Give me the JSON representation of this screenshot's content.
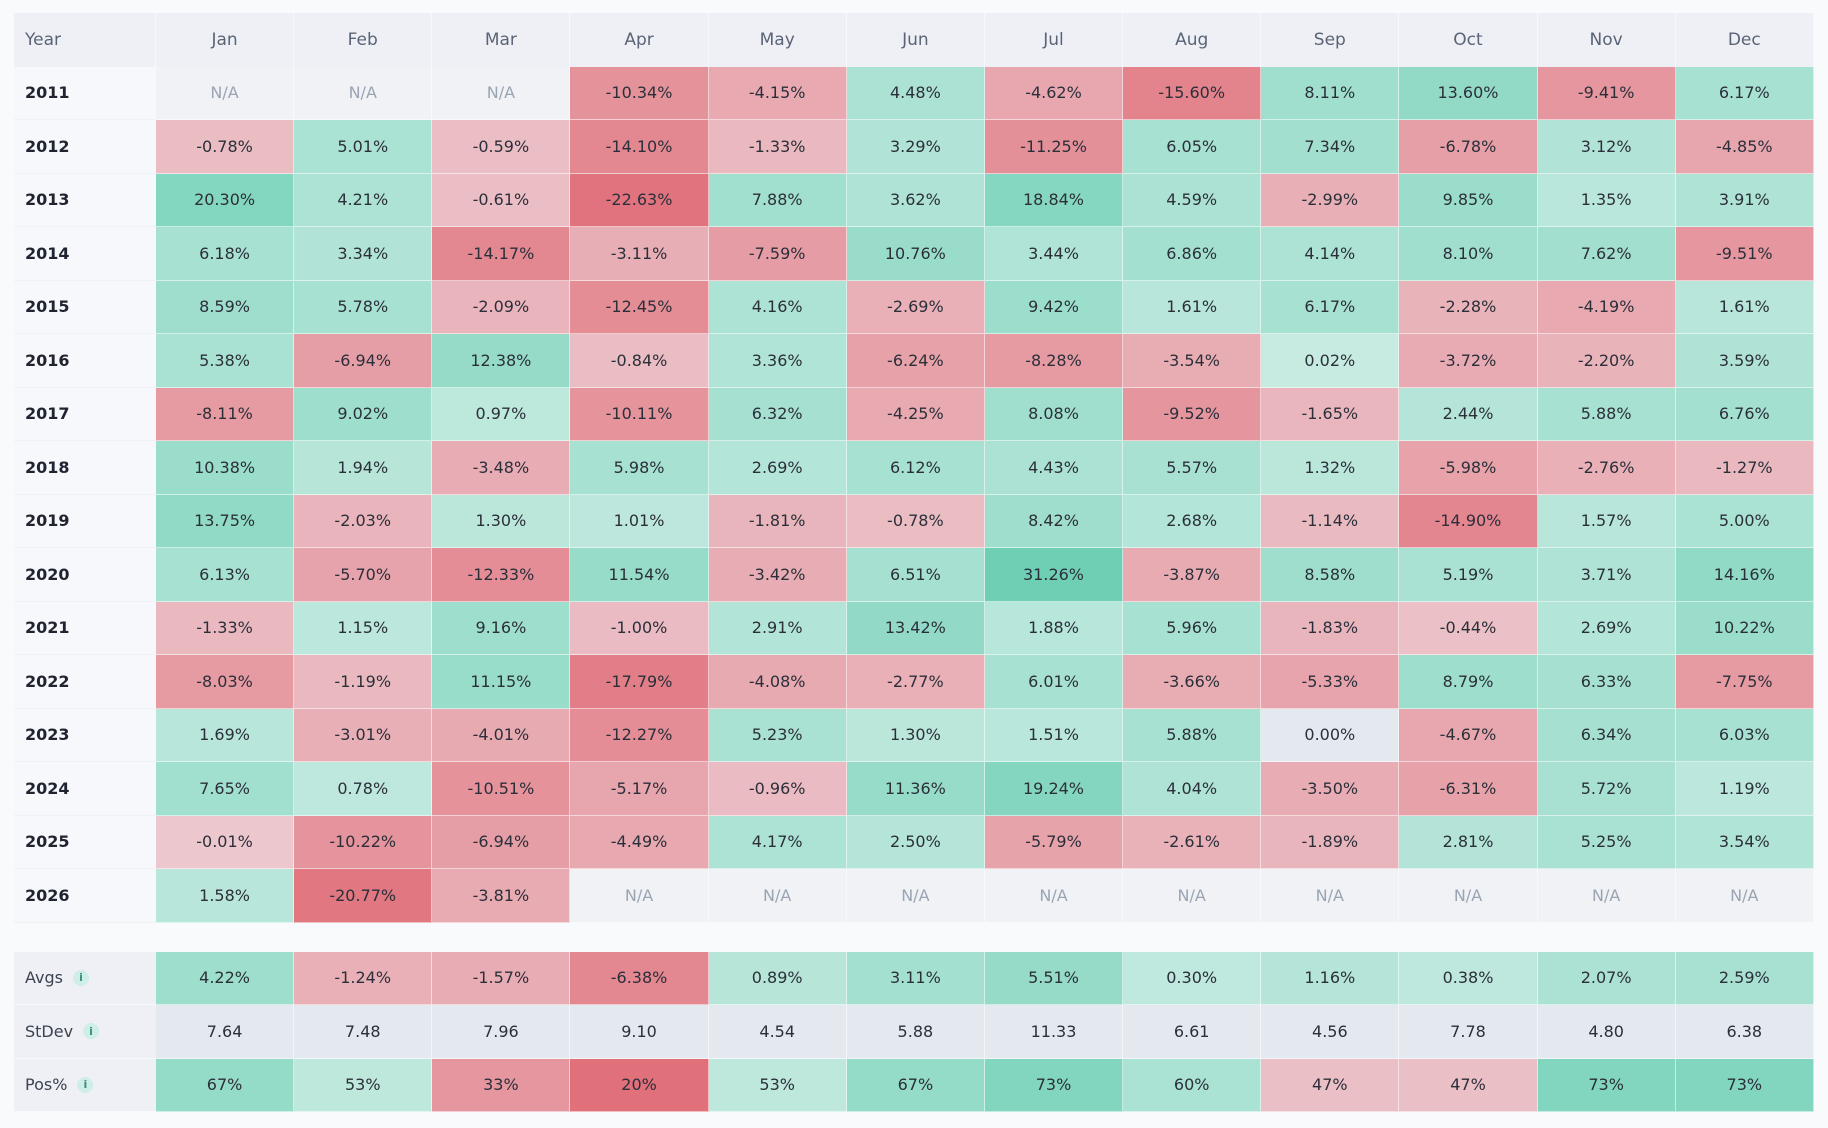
{
  "table": {
    "header": [
      "Year",
      "Jan",
      "Feb",
      "Mar",
      "Apr",
      "May",
      "Jun",
      "Jul",
      "Aug",
      "Sep",
      "Oct",
      "Nov",
      "Dec"
    ],
    "rows": [
      {
        "year": "2011",
        "values": [
          "N/A",
          "N/A",
          "N/A",
          "-10.34%",
          "-4.15%",
          "4.48%",
          "-4.62%",
          "-15.60%",
          "8.11%",
          "13.60%",
          "-9.41%",
          "6.17%"
        ]
      },
      {
        "year": "2012",
        "values": [
          "-0.78%",
          "5.01%",
          "-0.59%",
          "-14.10%",
          "-1.33%",
          "3.29%",
          "-11.25%",
          "6.05%",
          "7.34%",
          "-6.78%",
          "3.12%",
          "-4.85%"
        ]
      },
      {
        "year": "2013",
        "values": [
          "20.30%",
          "4.21%",
          "-0.61%",
          "-22.63%",
          "7.88%",
          "3.62%",
          "18.84%",
          "4.59%",
          "-2.99%",
          "9.85%",
          "1.35%",
          "3.91%"
        ]
      },
      {
        "year": "2014",
        "values": [
          "6.18%",
          "3.34%",
          "-14.17%",
          "-3.11%",
          "-7.59%",
          "10.76%",
          "3.44%",
          "6.86%",
          "4.14%",
          "8.10%",
          "7.62%",
          "-9.51%"
        ]
      },
      {
        "year": "2015",
        "values": [
          "8.59%",
          "5.78%",
          "-2.09%",
          "-12.45%",
          "4.16%",
          "-2.69%",
          "9.42%",
          "1.61%",
          "6.17%",
          "-2.28%",
          "-4.19%",
          "1.61%"
        ]
      },
      {
        "year": "2016",
        "values": [
          "5.38%",
          "-6.94%",
          "12.38%",
          "-0.84%",
          "3.36%",
          "-6.24%",
          "-8.28%",
          "-3.54%",
          "0.02%",
          "-3.72%",
          "-2.20%",
          "3.59%"
        ]
      },
      {
        "year": "2017",
        "values": [
          "-8.11%",
          "9.02%",
          "0.97%",
          "-10.11%",
          "6.32%",
          "-4.25%",
          "8.08%",
          "-9.52%",
          "-1.65%",
          "2.44%",
          "5.88%",
          "6.76%"
        ]
      },
      {
        "year": "2018",
        "values": [
          "10.38%",
          "1.94%",
          "-3.48%",
          "5.98%",
          "2.69%",
          "6.12%",
          "4.43%",
          "5.57%",
          "1.32%",
          "-5.98%",
          "-2.76%",
          "-1.27%"
        ]
      },
      {
        "year": "2019",
        "values": [
          "13.75%",
          "-2.03%",
          "1.30%",
          "1.01%",
          "-1.81%",
          "-0.78%",
          "8.42%",
          "2.68%",
          "-1.14%",
          "-14.90%",
          "1.57%",
          "5.00%"
        ]
      },
      {
        "year": "2020",
        "values": [
          "6.13%",
          "-5.70%",
          "-12.33%",
          "11.54%",
          "-3.42%",
          "6.51%",
          "31.26%",
          "-3.87%",
          "8.58%",
          "5.19%",
          "3.71%",
          "14.16%"
        ]
      },
      {
        "year": "2021",
        "values": [
          "-1.33%",
          "1.15%",
          "9.16%",
          "-1.00%",
          "2.91%",
          "13.42%",
          "1.88%",
          "5.96%",
          "-1.83%",
          "-0.44%",
          "2.69%",
          "10.22%"
        ]
      },
      {
        "year": "2022",
        "values": [
          "-8.03%",
          "-1.19%",
          "11.15%",
          "-17.79%",
          "-4.08%",
          "-2.77%",
          "6.01%",
          "-3.66%",
          "-5.33%",
          "8.79%",
          "6.33%",
          "-7.75%"
        ]
      },
      {
        "year": "2023",
        "values": [
          "1.69%",
          "-3.01%",
          "-4.01%",
          "-12.27%",
          "5.23%",
          "1.30%",
          "1.51%",
          "5.88%",
          "0.00%",
          "-4.67%",
          "6.34%",
          "6.03%"
        ]
      },
      {
        "year": "2024",
        "values": [
          "7.65%",
          "0.78%",
          "-10.51%",
          "-5.17%",
          "-0.96%",
          "11.36%",
          "19.24%",
          "4.04%",
          "-3.50%",
          "-6.31%",
          "5.72%",
          "1.19%"
        ]
      },
      {
        "year": "2025",
        "values": [
          "-0.01%",
          "-10.22%",
          "-6.94%",
          "-4.49%",
          "4.17%",
          "2.50%",
          "-5.79%",
          "-2.61%",
          "-1.89%",
          "2.81%",
          "5.25%",
          "3.54%"
        ]
      },
      {
        "year": "2026",
        "values": [
          "1.58%",
          "-20.77%",
          "-3.81%",
          "N/A",
          "N/A",
          "N/A",
          "N/A",
          "N/A",
          "N/A",
          "N/A",
          "N/A",
          "N/A"
        ]
      }
    ]
  },
  "summary": {
    "avgs": {
      "label": "Avgs",
      "values": [
        "4.22%",
        "-1.24%",
        "-1.57%",
        "-6.38%",
        "0.89%",
        "3.11%",
        "5.51%",
        "0.30%",
        "1.16%",
        "0.38%",
        "2.07%",
        "2.59%"
      ]
    },
    "stdev": {
      "label": "StDev",
      "values": [
        "7.64",
        "7.48",
        "7.96",
        "9.10",
        "4.54",
        "5.88",
        "11.33",
        "6.61",
        "4.56",
        "7.78",
        "4.80",
        "6.38"
      ]
    },
    "pos": {
      "label": "Pos%",
      "values": [
        "67%",
        "53%",
        "33%",
        "20%",
        "53%",
        "67%",
        "73%",
        "60%",
        "47%",
        "47%",
        "73%",
        "73%"
      ]
    }
  },
  "info_icon_glyph": "i",
  "colors": {
    "positive": "#6dcfb4",
    "negative": "#e0707a",
    "neutral": "#e4e8ef",
    "na": "#f0f2f6"
  }
}
